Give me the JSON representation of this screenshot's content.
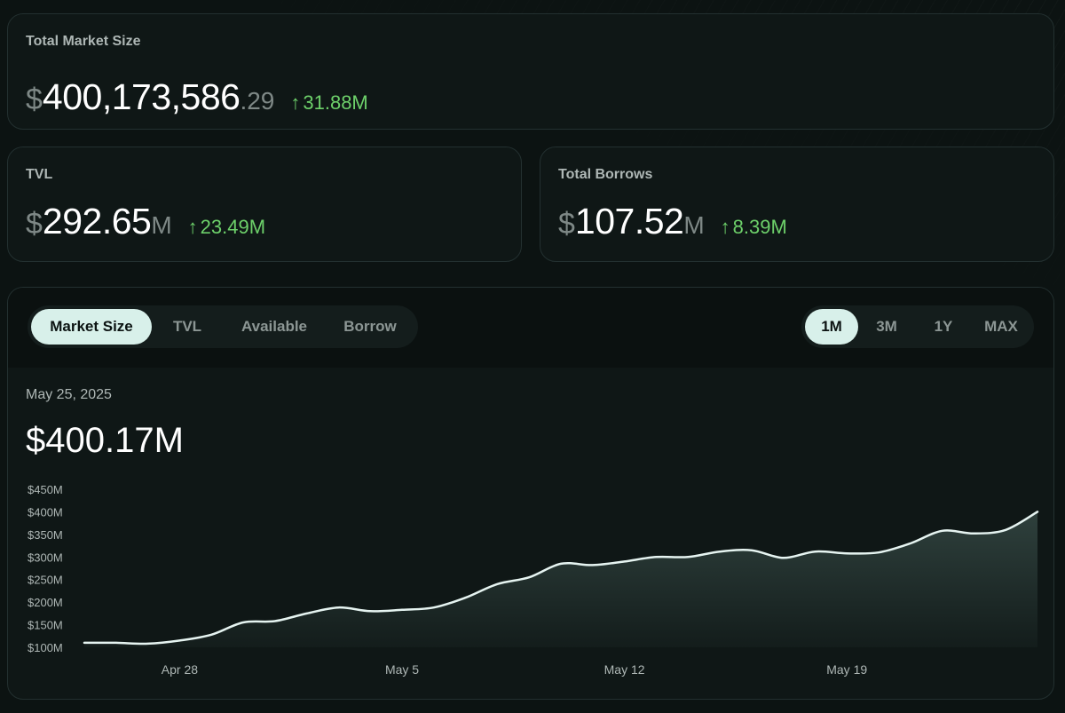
{
  "summary": {
    "total_market_size": {
      "title": "Total Market Size",
      "currency": "$",
      "value_main": "400,173,586",
      "value_decimals": ".29",
      "delta_arrow": "↑",
      "delta": "31.88M"
    },
    "tvl": {
      "title": "TVL",
      "currency": "$",
      "value_main": "292.65",
      "value_unit": "M",
      "delta_arrow": "↑",
      "delta": "23.49M"
    },
    "total_borrows": {
      "title": "Total Borrows",
      "currency": "$",
      "value_main": "107.52",
      "value_unit": "M",
      "delta_arrow": "↑",
      "delta": "8.39M"
    }
  },
  "chart_panel": {
    "metric_tabs": [
      {
        "label": "Market Size",
        "active": true
      },
      {
        "label": "TVL",
        "active": false
      },
      {
        "label": "Available",
        "active": false
      },
      {
        "label": "Borrow",
        "active": false
      }
    ],
    "range_tabs": [
      {
        "label": "1M",
        "active": true
      },
      {
        "label": "3M",
        "active": false
      },
      {
        "label": "1Y",
        "active": false
      },
      {
        "label": "MAX",
        "active": false
      }
    ],
    "selected_date": "May 25, 2025",
    "selected_value": "$400.17M"
  },
  "colors": {
    "positive": "#6dd06a",
    "line": "#e6f4f1",
    "active_tab_bg": "#d8f0ea"
  },
  "chart_data": {
    "type": "area",
    "x": [
      "Apr 25",
      "Apr 26",
      "Apr 27",
      "Apr 28",
      "Apr 29",
      "Apr 30",
      "May 1",
      "May 2",
      "May 3",
      "May 4",
      "May 5",
      "May 6",
      "May 7",
      "May 8",
      "May 9",
      "May 10",
      "May 11",
      "May 12",
      "May 13",
      "May 14",
      "May 15",
      "May 16",
      "May 17",
      "May 18",
      "May 19",
      "May 20",
      "May 21",
      "May 22",
      "May 23",
      "May 24",
      "May 25"
    ],
    "values": [
      110,
      110,
      108,
      115,
      128,
      155,
      158,
      175,
      188,
      180,
      183,
      188,
      210,
      240,
      255,
      285,
      282,
      290,
      300,
      300,
      312,
      315,
      298,
      312,
      308,
      310,
      330,
      358,
      352,
      360,
      400
    ],
    "xticks": [
      "Apr 28",
      "May 5",
      "May 12",
      "May 19"
    ],
    "yticks": [
      "$100M",
      "$150M",
      "$200M",
      "$250M",
      "$300M",
      "$350M",
      "$400M",
      "$450M"
    ],
    "ylim": [
      100,
      450
    ],
    "grid": false
  }
}
